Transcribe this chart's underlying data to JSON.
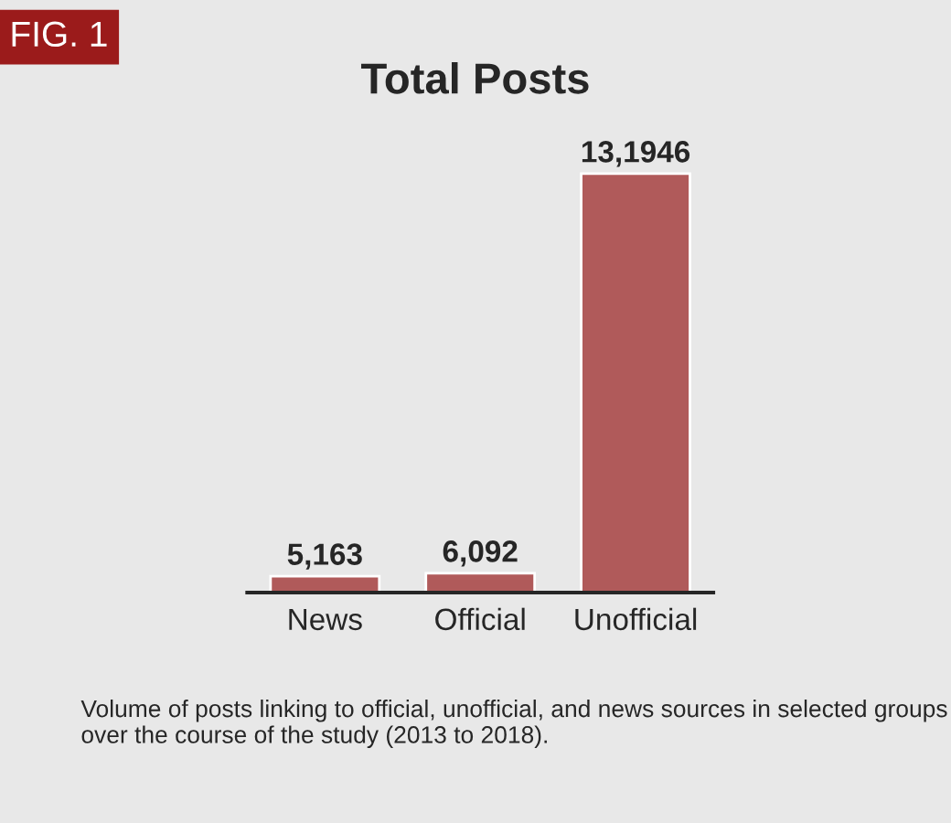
{
  "chart_data": {
    "type": "bar",
    "title": "Total Posts",
    "categories": [
      "News",
      "Official",
      "Unofficial"
    ],
    "values": [
      5163,
      6092,
      131946
    ],
    "value_labels": [
      "5,163",
      "6,092",
      "13,1946"
    ],
    "color": "#b05a5a",
    "annotations": [
      "FIG. 1",
      "Volume of posts linking to official, unofficial, and news sources in selected groups over the course of the study (2013 to 2018)."
    ]
  }
}
